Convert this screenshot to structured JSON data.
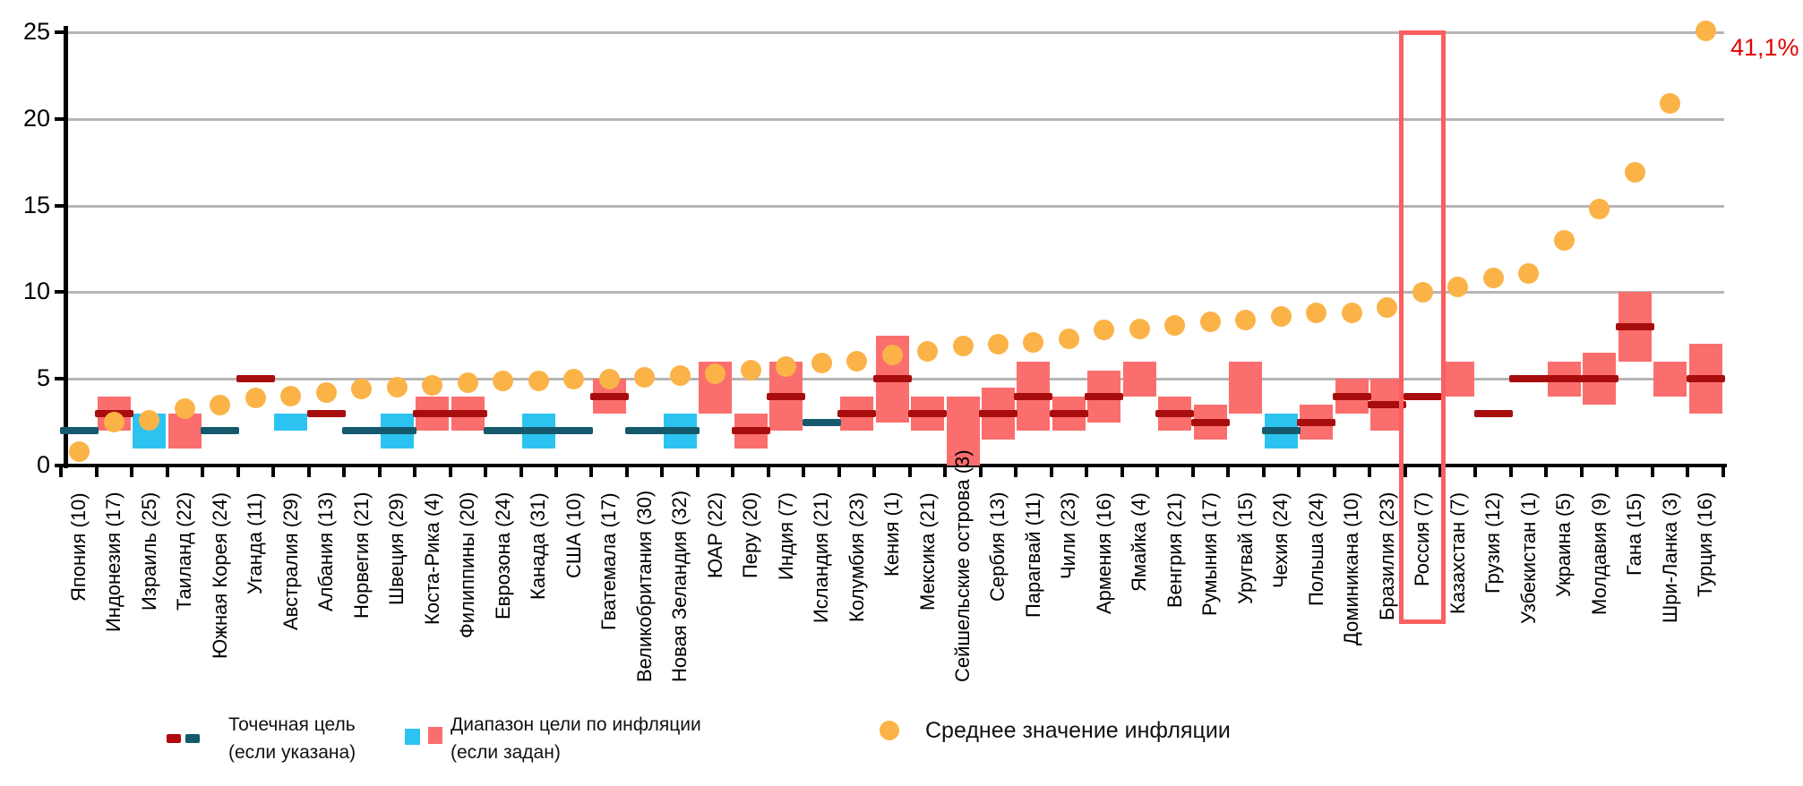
{
  "chart_data": {
    "type": "bar",
    "title": "",
    "xlabel": "",
    "ylabel": "",
    "ylim": [
      0,
      25
    ],
    "y_ticks": [
      0,
      5,
      10,
      15,
      20,
      25
    ],
    "grid": "horizontal",
    "legend_position": "bottom",
    "highlight_country": "Россия (7)",
    "clip_value_at": 25.1,
    "countries": [
      {
        "label": "Япония (10)",
        "band": null,
        "band_color": null,
        "point": 2,
        "point_color": "teal",
        "avg": 0.8
      },
      {
        "label": "Индонезия (17)",
        "band": [
          2,
          4
        ],
        "band_color": "salmon",
        "point": 3,
        "point_color": "dark_red",
        "avg": 2.5
      },
      {
        "label": "Израиль (25)",
        "band": [
          1,
          3
        ],
        "band_color": "cyan",
        "point": null,
        "point_color": null,
        "avg": 2.6
      },
      {
        "label": "Таиланд (22)",
        "band": [
          1,
          3
        ],
        "band_color": "salmon",
        "point": null,
        "point_color": null,
        "avg": 3.3
      },
      {
        "label": "Южная Корея (24)",
        "band": null,
        "band_color": null,
        "point": 2,
        "point_color": "teal",
        "avg": 3.5
      },
      {
        "label": "Уганда (11)",
        "band": null,
        "band_color": null,
        "point": 5,
        "point_color": "dark_red",
        "avg": 3.9
      },
      {
        "label": "Австралия (29)",
        "band": [
          2,
          3
        ],
        "band_color": "cyan",
        "point": null,
        "point_color": null,
        "avg": 4.0
      },
      {
        "label": "Албания (13)",
        "band": null,
        "band_color": null,
        "point": 3,
        "point_color": "dark_red",
        "avg": 4.2
      },
      {
        "label": "Норвегия (21)",
        "band": null,
        "band_color": null,
        "point": 2,
        "point_color": "teal",
        "avg": 4.4
      },
      {
        "label": "Швеция (29)",
        "band": [
          1,
          3
        ],
        "band_color": "cyan",
        "point": 2,
        "point_color": "teal",
        "avg": 4.5
      },
      {
        "label": "Коста-Рика (4)",
        "band": [
          2,
          4
        ],
        "band_color": "salmon",
        "point": 3,
        "point_color": "dark_red",
        "avg": 4.6
      },
      {
        "label": "Филиппины (20)",
        "band": [
          2,
          4
        ],
        "band_color": "salmon",
        "point": 3,
        "point_color": "dark_red",
        "avg": 4.8
      },
      {
        "label": "Еврозона (24)",
        "band": null,
        "band_color": null,
        "point": 2,
        "point_color": "teal",
        "avg": 4.9
      },
      {
        "label": "Канада (31)",
        "band": [
          1,
          3
        ],
        "band_color": "cyan",
        "point": 2,
        "point_color": "teal",
        "avg": 4.9
      },
      {
        "label": "США (10)",
        "band": null,
        "band_color": null,
        "point": 2,
        "point_color": "teal",
        "avg": 5.0
      },
      {
        "label": "Гватемала (17)",
        "band": [
          3,
          5
        ],
        "band_color": "salmon",
        "point": 4,
        "point_color": "dark_red",
        "avg": 5.0
      },
      {
        "label": "Великобритания (30)",
        "band": null,
        "band_color": null,
        "point": 2,
        "point_color": "teal",
        "avg": 5.1
      },
      {
        "label": "Новая Зеландия (32)",
        "band": [
          1,
          3
        ],
        "band_color": "cyan",
        "point": 2,
        "point_color": "teal",
        "avg": 5.2
      },
      {
        "label": "ЮАР (22)",
        "band": [
          3,
          6
        ],
        "band_color": "salmon",
        "point": null,
        "point_color": null,
        "avg": 5.3
      },
      {
        "label": "Перу (20)",
        "band": [
          1,
          3
        ],
        "band_color": "salmon",
        "point": 2,
        "point_color": "dark_red",
        "avg": 5.5
      },
      {
        "label": "Индия (7)",
        "band": [
          2,
          6
        ],
        "band_color": "salmon",
        "point": 4,
        "point_color": "dark_red",
        "avg": 5.7
      },
      {
        "label": "Исландия (21)",
        "band": null,
        "band_color": null,
        "point": 2.5,
        "point_color": "teal",
        "avg": 5.9
      },
      {
        "label": "Колумбия (23)",
        "band": [
          2,
          4
        ],
        "band_color": "salmon",
        "point": 3,
        "point_color": "dark_red",
        "avg": 6.0
      },
      {
        "label": "Кения (1)",
        "band": [
          2.5,
          7.5
        ],
        "band_color": "salmon",
        "point": 5,
        "point_color": "dark_red",
        "avg": 6.4
      },
      {
        "label": "Мексика (21)",
        "band": [
          2,
          4
        ],
        "band_color": "salmon",
        "point": 3,
        "point_color": "dark_red",
        "avg": 6.6
      },
      {
        "label": "Сейшельские острова (3)",
        "band": [
          0,
          4
        ],
        "band_color": "salmon",
        "point": null,
        "point_color": null,
        "avg": 6.9
      },
      {
        "label": "Сербия (13)",
        "band": [
          1.5,
          4.5
        ],
        "band_color": "salmon",
        "point": 3,
        "point_color": "dark_red",
        "avg": 7.0
      },
      {
        "label": "Парагвай (11)",
        "band": [
          2,
          6
        ],
        "band_color": "salmon",
        "point": 4,
        "point_color": "dark_red",
        "avg": 7.1
      },
      {
        "label": "Чили (23)",
        "band": [
          2,
          4
        ],
        "band_color": "salmon",
        "point": 3,
        "point_color": "dark_red",
        "avg": 7.3
      },
      {
        "label": "Армения (16)",
        "band": [
          2.5,
          5.5
        ],
        "band_color": "salmon",
        "point": 4,
        "point_color": "dark_red",
        "avg": 7.8
      },
      {
        "label": "Ямайка (4)",
        "band": [
          4,
          6
        ],
        "band_color": "salmon",
        "point": null,
        "point_color": null,
        "avg": 7.9
      },
      {
        "label": "Венгрия (21)",
        "band": [
          2,
          4
        ],
        "band_color": "salmon",
        "point": 3,
        "point_color": "dark_red",
        "avg": 8.1
      },
      {
        "label": "Румыния (17)",
        "band": [
          1.5,
          3.5
        ],
        "band_color": "salmon",
        "point": 2.5,
        "point_color": "dark_red",
        "avg": 8.3
      },
      {
        "label": "Уругвай (15)",
        "band": [
          3,
          6
        ],
        "band_color": "salmon",
        "point": null,
        "point_color": null,
        "avg": 8.4
      },
      {
        "label": "Чехия (24)",
        "band": [
          1,
          3
        ],
        "band_color": "cyan",
        "point": 2,
        "point_color": "teal",
        "avg": 8.6
      },
      {
        "label": "Польша (24)",
        "band": [
          1.5,
          3.5
        ],
        "band_color": "salmon",
        "point": 2.5,
        "point_color": "dark_red",
        "avg": 8.8
      },
      {
        "label": "Доминикана (10)",
        "band": [
          3,
          5
        ],
        "band_color": "salmon",
        "point": 4,
        "point_color": "dark_red",
        "avg": 8.8
      },
      {
        "label": "Бразилия (23)",
        "band": [
          2,
          5
        ],
        "band_color": "salmon",
        "point": 3.5,
        "point_color": "dark_red",
        "avg": 9.1
      },
      {
        "label": "Россия (7)",
        "band": null,
        "band_color": null,
        "point": 4,
        "point_color": "dark_red",
        "avg": 10.0
      },
      {
        "label": "Казахстан (7)",
        "band": [
          4,
          6
        ],
        "band_color": "salmon",
        "point": null,
        "point_color": null,
        "avg": 10.3
      },
      {
        "label": "Грузия (12)",
        "band": null,
        "band_color": null,
        "point": 3,
        "point_color": "dark_red",
        "avg": 10.8
      },
      {
        "label": "Узбекистан (1)",
        "band": null,
        "band_color": null,
        "point": 5,
        "point_color": "dark_red",
        "avg": 11.1
      },
      {
        "label": "Украина (5)",
        "band": [
          4,
          6
        ],
        "band_color": "salmon",
        "point": 5,
        "point_color": "dark_red",
        "avg": 13.0
      },
      {
        "label": "Молдавия (9)",
        "band": [
          3.5,
          6.5
        ],
        "band_color": "salmon",
        "point": 5,
        "point_color": "dark_red",
        "avg": 14.8
      },
      {
        "label": "Гана (15)",
        "band": [
          6,
          10
        ],
        "band_color": "salmon",
        "point": 8,
        "point_color": "dark_red",
        "avg": 16.9
      },
      {
        "label": "Шри-Ланка (3)",
        "band": [
          4,
          6
        ],
        "band_color": "salmon",
        "point": null,
        "point_color": null,
        "avg": 20.9
      },
      {
        "label": "Турция (16)",
        "band": [
          3,
          7
        ],
        "band_color": "salmon",
        "point": 5,
        "point_color": "dark_red",
        "avg": 41.1,
        "avg_label": "41,1%"
      }
    ]
  },
  "annotation": {
    "text": "41,1%"
  },
  "legend": {
    "point_target": {
      "line1": "Точечная цель",
      "line2": "(если указана)"
    },
    "target_range": {
      "line1": "Диапазон цели по инфляции",
      "line2": "(если задан)"
    },
    "avg_inflation": {
      "line1": "Среднее значение инфляции"
    }
  },
  "colors": {
    "salmon": "#fb6e6e",
    "cyan": "#2cc3f0",
    "dark_red": "#a80d0d",
    "teal": "#14596c",
    "orange": "#fbb347",
    "highlight_border": "#fb5f5f",
    "annotation_red": "#e30000",
    "grid": "#b5b5b5",
    "axis": "#000000"
  }
}
